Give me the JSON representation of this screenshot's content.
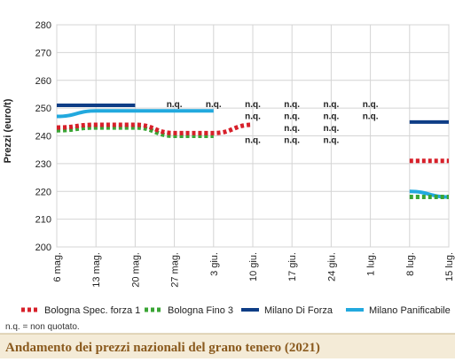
{
  "chart_data": {
    "type": "line",
    "title": "Andamento dei prezzi nazionali del grano tenero (2021)",
    "ylabel": "Prezzi (euro/t)",
    "xlabel": "",
    "ylim": [
      200,
      280
    ],
    "yticks": [
      200,
      210,
      220,
      230,
      240,
      250,
      260,
      270,
      280
    ],
    "categories": [
      "6 mag.",
      "13 mag.",
      "20 mag.",
      "27 mag.",
      "3 giu.",
      "10 giu.",
      "17 giu.",
      "24 giu.",
      "1 lug.",
      "8 lug.",
      "15 lug."
    ],
    "grid": true,
    "legend_position": "bottom",
    "note": "n.q. = non quotato.",
    "nq_label": "n.q.",
    "series": [
      {
        "name": "Bologna Spec. forza 1",
        "style": "dotted",
        "color": "#d7202a",
        "values": [
          243,
          244,
          244,
          241,
          241,
          244,
          null,
          null,
          null,
          231,
          231
        ]
      },
      {
        "name": "Bologna Fino 3",
        "style": "dotted",
        "color": "#3aa535",
        "values": [
          242,
          243,
          243,
          240,
          240,
          null,
          null,
          null,
          null,
          218,
          218
        ]
      },
      {
        "name": "Milano Di Forza",
        "style": "solid",
        "color": "#0e3d86",
        "values": [
          251,
          251,
          251,
          null,
          null,
          null,
          null,
          null,
          null,
          245,
          245
        ]
      },
      {
        "name": "Milano Panificabile",
        "style": "solid",
        "color": "#22a9de",
        "values": [
          247,
          249,
          249,
          249,
          249,
          null,
          null,
          null,
          null,
          220,
          218
        ]
      }
    ],
    "nq_marks": [
      {
        "category": "27 mag.",
        "series": "Milano Di Forza"
      },
      {
        "category": "3 giu.",
        "series": "Milano Di Forza"
      },
      {
        "category": "10 giu.",
        "series": "Milano Di Forza"
      },
      {
        "category": "10 giu.",
        "series": "Milano Panificabile"
      },
      {
        "category": "10 giu.",
        "series": "Bologna Fino 3"
      },
      {
        "category": "17 giu.",
        "series": "Milano Di Forza"
      },
      {
        "category": "17 giu.",
        "series": "Milano Panificabile"
      },
      {
        "category": "17 giu.",
        "series": "Bologna Spec. forza 1"
      },
      {
        "category": "17 giu.",
        "series": "Bologna Fino 3"
      },
      {
        "category": "24 giu.",
        "series": "Milano Di Forza"
      },
      {
        "category": "24 giu.",
        "series": "Milano Panificabile"
      },
      {
        "category": "24 giu.",
        "series": "Bologna Spec. forza 1"
      },
      {
        "category": "24 giu.",
        "series": "Bologna Fino 3"
      },
      {
        "category": "1 lug.",
        "series": "Milano Di Forza"
      },
      {
        "category": "1 lug.",
        "series": "Milano Panificabile"
      }
    ]
  }
}
